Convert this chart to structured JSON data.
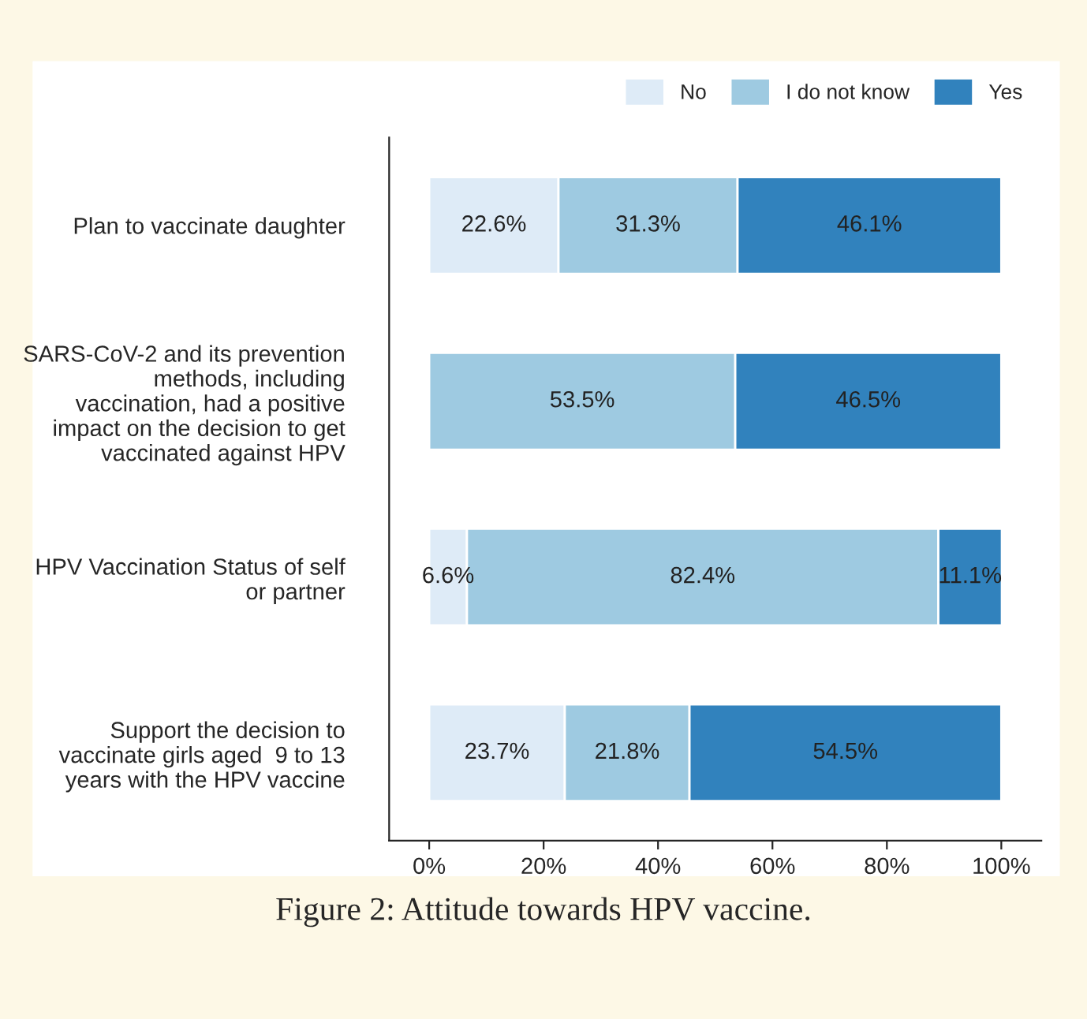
{
  "chart_data": {
    "type": "bar",
    "orientation": "horizontal",
    "stacked": true,
    "categories": [
      "Plan to vaccinate daughter",
      "SARS-CoV-2 and its prevention\nmethods, including\nvaccination, had a positive\nimpact on the decision to get\nvaccinated against HPV",
      "HPV Vaccination Status of self\nor partner",
      "Support the decision to\nvaccinate girls aged  9 to 13\nyears with the HPV vaccine"
    ],
    "series": [
      {
        "name": "No",
        "color": "#deebf7",
        "values": [
          22.6,
          0,
          6.6,
          23.7
        ],
        "value_labels": [
          "22.6%",
          null,
          "6.6%",
          "23.7%"
        ]
      },
      {
        "name": "I do not know",
        "color": "#9ecae1",
        "values": [
          31.3,
          53.5,
          82.4,
          21.8
        ],
        "value_labels": [
          "31.3%",
          "53.5%",
          "82.4%",
          "21.8%"
        ]
      },
      {
        "name": "Yes",
        "color": "#3182bd",
        "values": [
          46.1,
          46.5,
          11.1,
          54.5
        ],
        "value_labels": [
          "46.1%",
          "46.5%",
          "11.1%",
          "54.5%"
        ]
      }
    ],
    "xlim": [
      -7,
      107
    ],
    "xticks": [
      {
        "value": 0,
        "label": "0%"
      },
      {
        "value": 20,
        "label": "20%"
      },
      {
        "value": 40,
        "label": "40%"
      },
      {
        "value": 60,
        "label": "60%"
      },
      {
        "value": 80,
        "label": "80%"
      },
      {
        "value": 100,
        "label": "100%"
      }
    ],
    "legend": "top right",
    "grid": false,
    "annotations": [
      "Figure 2: Attitude towards HPV vaccine."
    ]
  }
}
